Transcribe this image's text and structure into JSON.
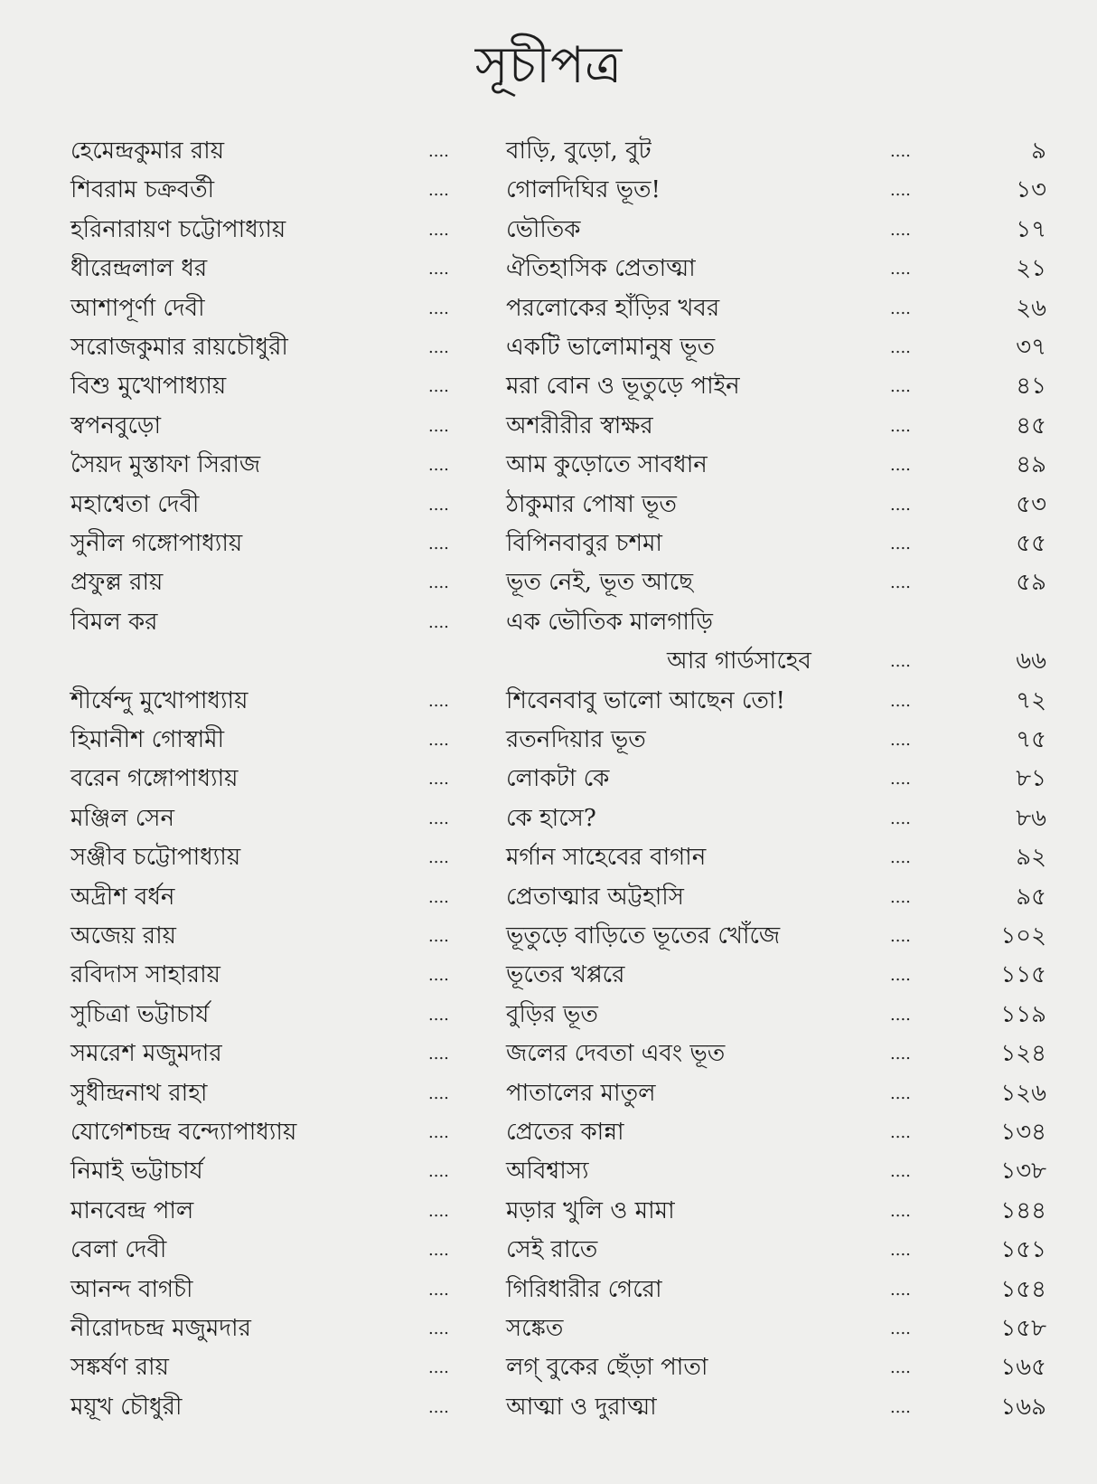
{
  "title": "সূচীপত্র",
  "leader": "....",
  "entries": [
    {
      "author": "হেমেন্দ্রকুমার রায়",
      "story": "বাড়ি, বুড়ো, বুট",
      "page": "৯"
    },
    {
      "author": "শিবরাম চক্রবর্তী",
      "story": "গোলদিঘির ভূত!",
      "page": "১৩"
    },
    {
      "author": "হরিনারায়ণ চট্টোপাধ্যায়",
      "story": "ভৌতিক",
      "page": "১৭"
    },
    {
      "author": "ধীরেন্দ্রলাল ধর",
      "story": "ঐতিহাসিক প্রেতাত্মা",
      "page": "২১"
    },
    {
      "author": "আশাপূর্ণা দেবী",
      "story": "পরলোকের হাঁড়ির খবর",
      "page": "২৬"
    },
    {
      "author": "সরোজকুমার রায়চৌধুরী",
      "story": "একটি ভালোমানুষ ভূত",
      "page": "৩৭"
    },
    {
      "author": "বিশু মুখোপাধ্যায়",
      "story": "মরা বোন ও ভূতুড়ে পাইন",
      "page": "৪১"
    },
    {
      "author": "স্বপনবুড়ো",
      "story": "অশরীরীর স্বাক্ষর",
      "page": "৪৫"
    },
    {
      "author": "সৈয়দ মুস্তাফা সিরাজ",
      "story": "আম কুড়োতে সাবধান",
      "page": "৪৯"
    },
    {
      "author": "মহাশ্বেতা দেবী",
      "story": "ঠাকুমার পোষা ভূত",
      "page": "৫৩"
    },
    {
      "author": "সুনীল গঙ্গোপাধ্যায়",
      "story": "বিপিনবাবুর চশমা",
      "page": "৫৫"
    },
    {
      "author": "প্রফুল্ল রায়",
      "story": "ভূত নেই, ভূত আছে",
      "page": "৫৯"
    },
    {
      "author": "বিমল কর",
      "story": "এক ভৌতিক মালগাড়ি",
      "story_cont": "আর গার্ডসাহেব",
      "page": "৬৬"
    },
    {
      "author": "শীর্ষেন্দু মুখোপাধ্যায়",
      "story": "শিবেনবাবু ভালো আছেন তো!",
      "page": "৭২"
    },
    {
      "author": "হিমানীশ গোস্বামী",
      "story": "রতনদিয়ার ভূত",
      "page": "৭৫"
    },
    {
      "author": "বরেন গঙ্গোপাধ্যায়",
      "story": "লোকটা কে",
      "page": "৮১"
    },
    {
      "author": "মঞ্জিল সেন",
      "story": "কে হাসে?",
      "page": "৮৬"
    },
    {
      "author": "সঞ্জীব চট্টোপাধ্যায়",
      "story": "মর্গান সাহেবের বাগান",
      "page": "৯২"
    },
    {
      "author": "অদ্রীশ বর্ধন",
      "story": "প্রেতাত্মার অট্টহাসি",
      "page": "৯৫"
    },
    {
      "author": "অজেয় রায়",
      "story": "ভূতুড়ে বাড়িতে ভূতের খোঁজে",
      "page": "১০২"
    },
    {
      "author": "রবিদাস সাহারায়",
      "story": "ভূতের খপ্পরে",
      "page": "১১৫"
    },
    {
      "author": "সুচিত্রা ভট্টাচার্য",
      "story": "বুড়ির ভূত",
      "page": "১১৯"
    },
    {
      "author": "সমরেশ মজুমদার",
      "story": "জলের দেবতা এবং ভূত",
      "page": "১২৪"
    },
    {
      "author": "সুধীন্দ্রনাথ রাহা",
      "story": "পাতালের মাতুল",
      "page": "১২৬"
    },
    {
      "author": "যোগেশচন্দ্র বন্দ্যোপাধ্যায়",
      "story": "প্রেতের কান্না",
      "page": "১৩৪"
    },
    {
      "author": "নিমাই ভট্টাচার্য",
      "story": "অবিশ্বাস্য",
      "page": "১৩৮"
    },
    {
      "author": "মানবেন্দ্র পাল",
      "story": "মড়ার খুলি ও মামা",
      "page": "১৪৪"
    },
    {
      "author": "বেলা দেবী",
      "story": "সেই রাতে",
      "page": "১৫১"
    },
    {
      "author": "আনন্দ বাগচী",
      "story": "গিরিধারীর গেরো",
      "page": "১৫৪"
    },
    {
      "author": "নীরোদচন্দ্র মজুমদার",
      "story": "সঙ্কেত",
      "page": "১৫৮"
    },
    {
      "author": "সঙ্কর্ষণ রায়",
      "story": "লগ্ বুকের ছেঁড়া পাতা",
      "page": "১৬৫"
    },
    {
      "author": "ময়ূখ চৌধুরী",
      "story": "আত্মা ও দুরাত্মা",
      "page": "১৬৯"
    }
  ]
}
